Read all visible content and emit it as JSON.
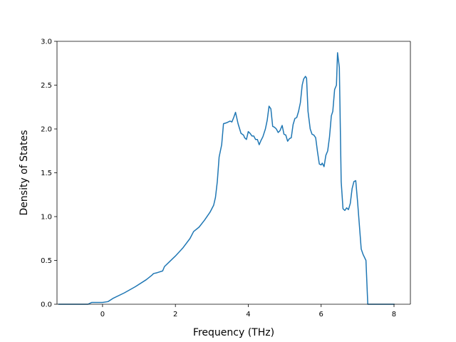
{
  "chart_data": {
    "type": "line",
    "title": "",
    "xlabel": "Frequency (THz)",
    "ylabel": "Density of States",
    "xlim": [
      -1.25,
      8.45
    ],
    "ylim": [
      0,
      3.0
    ],
    "xticks": [
      0,
      2,
      4,
      6,
      8
    ],
    "xtick_labels": [
      "0",
      "2",
      "4",
      "6",
      "8"
    ],
    "yticks": [
      0.0,
      0.5,
      1.0,
      1.5,
      2.0,
      2.5,
      3.0
    ],
    "ytick_labels": [
      "0.0",
      "0.5",
      "1.0",
      "1.5",
      "2.0",
      "2.5",
      "3.0"
    ],
    "grid": false,
    "legend": "none",
    "colors": {
      "series": "#1f77b4",
      "axes": "#000000",
      "background": "#ffffff"
    },
    "series": [
      {
        "x": [
          -1.2,
          -0.4,
          -0.3,
          -0.15,
          0.0,
          0.15,
          0.3,
          0.6,
          0.9,
          1.2,
          1.35,
          1.4,
          1.5,
          1.65,
          1.7,
          1.8,
          2.0,
          2.2,
          2.4,
          2.5,
          2.65,
          2.8,
          2.95,
          3.05,
          3.1,
          3.15,
          3.2,
          3.27,
          3.32,
          3.4,
          3.5,
          3.55,
          3.6,
          3.65,
          3.72,
          3.8,
          3.87,
          3.9,
          3.95,
          4.0,
          4.05,
          4.1,
          4.15,
          4.2,
          4.25,
          4.3,
          4.35,
          4.4,
          4.47,
          4.52,
          4.57,
          4.62,
          4.67,
          4.72,
          4.77,
          4.82,
          4.87,
          4.93,
          4.98,
          5.03,
          5.08,
          5.13,
          5.18,
          5.23,
          5.28,
          5.33,
          5.38,
          5.43,
          5.48,
          5.52,
          5.57,
          5.6,
          5.64,
          5.7,
          5.75,
          5.8,
          5.85,
          5.9,
          5.95,
          6.0,
          6.03,
          6.08,
          6.13,
          6.18,
          6.23,
          6.28,
          6.32,
          6.37,
          6.42,
          6.45,
          6.5,
          6.55,
          6.6,
          6.65,
          6.7,
          6.75,
          6.8,
          6.85,
          6.9,
          6.95,
          7.0,
          7.05,
          7.1,
          7.15,
          7.23,
          7.28,
          7.5,
          8.0
        ],
        "y": [
          0.0,
          0.0,
          0.02,
          0.02,
          0.02,
          0.03,
          0.07,
          0.13,
          0.2,
          0.28,
          0.33,
          0.35,
          0.36,
          0.38,
          0.43,
          0.47,
          0.55,
          0.64,
          0.75,
          0.83,
          0.88,
          0.96,
          1.05,
          1.13,
          1.22,
          1.4,
          1.68,
          1.82,
          2.06,
          2.07,
          2.09,
          2.08,
          2.13,
          2.19,
          2.06,
          1.95,
          1.93,
          1.9,
          1.88,
          1.97,
          1.95,
          1.92,
          1.92,
          1.88,
          1.88,
          1.82,
          1.87,
          1.91,
          2.0,
          2.1,
          2.26,
          2.23,
          2.03,
          2.02,
          2.0,
          1.96,
          1.98,
          2.04,
          1.94,
          1.93,
          1.86,
          1.89,
          1.9,
          2.05,
          2.12,
          2.13,
          2.2,
          2.3,
          2.5,
          2.57,
          2.6,
          2.58,
          2.2,
          2.0,
          1.94,
          1.93,
          1.9,
          1.74,
          1.6,
          1.59,
          1.61,
          1.57,
          1.7,
          1.75,
          1.91,
          2.15,
          2.2,
          2.45,
          2.5,
          2.87,
          2.7,
          1.4,
          1.09,
          1.07,
          1.1,
          1.08,
          1.15,
          1.32,
          1.4,
          1.41,
          1.17,
          0.9,
          0.63,
          0.57,
          0.5,
          0.0,
          0.0,
          0.0
        ]
      }
    ]
  }
}
